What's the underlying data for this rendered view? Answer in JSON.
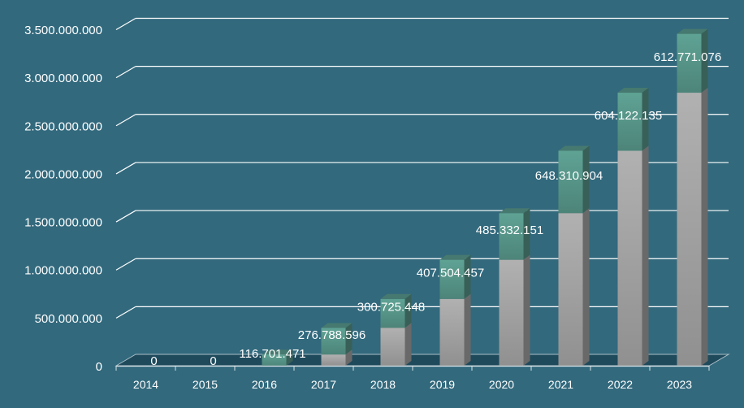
{
  "chart_data": {
    "type": "bar",
    "stacked": true,
    "style": "3d",
    "categories": [
      "2014",
      "2015",
      "2016",
      "2017",
      "2018",
      "2019",
      "2020",
      "2021",
      "2022",
      "2023"
    ],
    "series": [
      {
        "values": [
          0,
          0,
          0,
          116701471,
          394204067,
          694929515,
          1102433972,
          1587766123,
          2236077027,
          2840199162
        ],
        "color": "#a9a9a9"
      },
      {
        "values": [
          0,
          0,
          116701471,
          276788596,
          300725448,
          407504457,
          485332151,
          648310904,
          604122135,
          612771076
        ],
        "color": "#5a9b8e"
      }
    ],
    "data_labels": [
      "0",
      "0",
      "116.701.471",
      "276.788.596",
      "300.725.448",
      "407.504.457",
      "485.332.151",
      "648.310.904",
      "604.122.135",
      "612.771.076"
    ],
    "ylim": [
      0,
      3500000000
    ],
    "yticks": [
      "0",
      "500.000.000",
      "1.000.000.000",
      "1.500.000.000",
      "2.000.000.000",
      "2.500.000.000",
      "3.000.000.000",
      "3.500.000.000"
    ],
    "ytick_values": [
      0,
      500000000,
      1000000000,
      1500000000,
      2000000000,
      2500000000,
      3000000000,
      3500000000
    ],
    "grid": true,
    "background": "#32697d",
    "gridline_color": "#ffffff"
  }
}
